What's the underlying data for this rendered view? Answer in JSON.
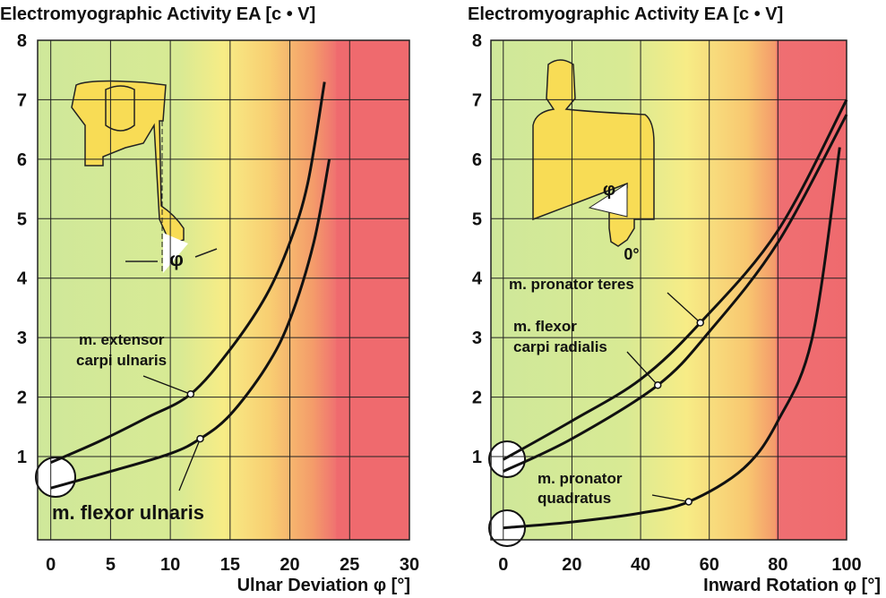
{
  "chart_data": [
    {
      "type": "line",
      "title": "Electromyographic Activity EA [c • V]",
      "xlabel": "Ulnar Deviation φ [°]",
      "xlim": [
        -1.1,
        30
      ],
      "ylim": [
        -0.4,
        8
      ],
      "xticks": [
        0,
        5,
        10,
        15,
        20,
        25,
        30
      ],
      "yticks": [
        1,
        2,
        3,
        4,
        5,
        6,
        7,
        8
      ],
      "grid": true,
      "figure_text": [
        "φ"
      ],
      "series": [
        {
          "label": [
            "m. extensor",
            "carpi ulnaris"
          ],
          "color": "#111111",
          "x": [
            0,
            4,
            8,
            11.7,
            15,
            18,
            20,
            21.5,
            22.9
          ],
          "values": [
            0.9,
            1.25,
            1.65,
            2.05,
            2.8,
            3.7,
            4.6,
            5.6,
            7.3
          ]
        },
        {
          "label": [
            "m. flexor ulnaris"
          ],
          "color": "#111111",
          "x": [
            0,
            5,
            10,
            12.5,
            15,
            18,
            20,
            22,
            23.3
          ],
          "values": [
            0.47,
            0.75,
            1.05,
            1.3,
            1.7,
            2.5,
            3.3,
            4.6,
            6.0
          ]
        }
      ]
    },
    {
      "type": "line",
      "title": "Electromyographic Activity EA [c • V]",
      "xlabel": "Inward Rotation φ [°]",
      "xlim": [
        -3.6,
        100
      ],
      "ylim": [
        -0.4,
        8
      ],
      "xticks": [
        0,
        20,
        40,
        60,
        80,
        100
      ],
      "yticks": [
        1,
        2,
        3,
        4,
        5,
        6,
        7,
        8
      ],
      "grid": true,
      "figure_text": [
        "φ",
        "0°"
      ],
      "series": [
        {
          "label": [
            "m. pronator teres"
          ],
          "color": "#111111",
          "x": [
            0,
            20,
            40,
            57.4,
            80,
            100
          ],
          "values": [
            0.95,
            1.6,
            2.3,
            3.25,
            4.8,
            7.0
          ]
        },
        {
          "label": [
            "m. flexor",
            "carpi radialis"
          ],
          "color": "#111111",
          "x": [
            0,
            20,
            45,
            60,
            80,
            100
          ],
          "values": [
            0.75,
            1.3,
            2.2,
            3.1,
            4.6,
            6.75
          ]
        },
        {
          "label": [
            "m. pronator",
            "quadratus"
          ],
          "color": "#111111",
          "x": [
            0,
            20,
            40,
            54,
            70,
            80,
            90,
            98
          ],
          "values": [
            -0.2,
            -0.1,
            0.05,
            0.24,
            0.8,
            1.6,
            3.0,
            6.2
          ]
        }
      ]
    }
  ]
}
